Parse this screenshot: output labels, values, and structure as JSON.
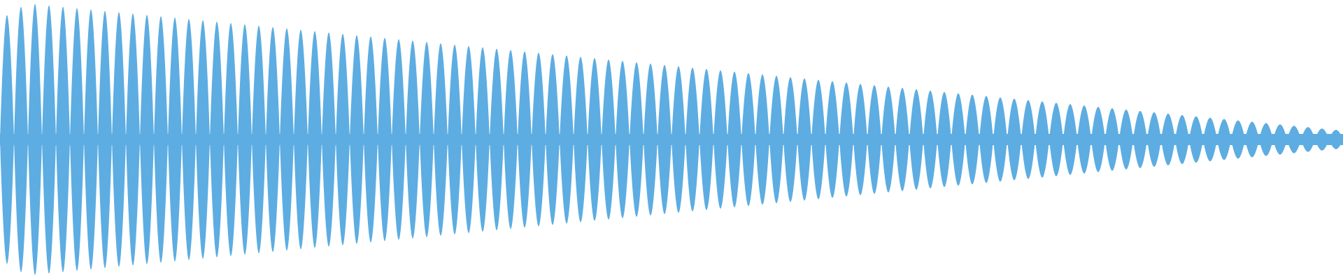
{
  "waveform": {
    "icon": "audio-waveform",
    "color": "#5dade2",
    "cycle_count": 96,
    "peak_amplitude": 1.0,
    "end_amplitude": 0.07,
    "envelope": "linear-decay"
  }
}
